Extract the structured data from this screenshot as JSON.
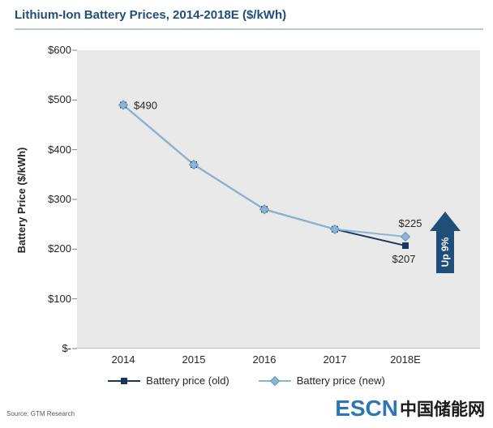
{
  "header": {
    "title": "Lithium-Ion Battery Prices, 2014-2018E ($/kWh)"
  },
  "chart_data": {
    "type": "line",
    "title": "Lithium-Ion Battery Prices, 2014-2018E ($/kWh)",
    "ylabel": "Battery Price ($/kWh)",
    "ylim": [
      0,
      600
    ],
    "ytick_step": 100,
    "ytick_labels": [
      "$-",
      "$100",
      "$200",
      "$300",
      "$400",
      "$500",
      "$600"
    ],
    "categories": [
      "2014",
      "2015",
      "2016",
      "2017",
      "2018E"
    ],
    "grid": false,
    "plot_bg": "#e9e9e9",
    "legend_position": "bottom",
    "series": [
      {
        "name": "Battery price (old)",
        "marker": "square",
        "color": "#17375e",
        "marker_stroke": "#17375e",
        "values": [
          490,
          370,
          280,
          240,
          207
        ]
      },
      {
        "name": "Battery price (new)",
        "marker": "diamond",
        "color": "#8eb4d3",
        "marker_stroke": "#6694bd",
        "values": [
          490,
          370,
          280,
          240,
          225
        ]
      }
    ],
    "annotations": [
      {
        "text": "$490",
        "series": 0,
        "xi": 0,
        "value": 490,
        "pos": "right"
      },
      {
        "text": "$225",
        "series": 1,
        "xi": 4,
        "value": 225,
        "pos": "above"
      },
      {
        "text": "$207",
        "series": 0,
        "xi": 4,
        "value": 207,
        "pos": "below"
      }
    ],
    "arrow": {
      "label": "Up 9%",
      "color": "#1f4e79"
    }
  },
  "footer": {
    "source": "Source: GTM Research",
    "logo_en": "ESCN",
    "logo_cn": "中国储能网"
  }
}
